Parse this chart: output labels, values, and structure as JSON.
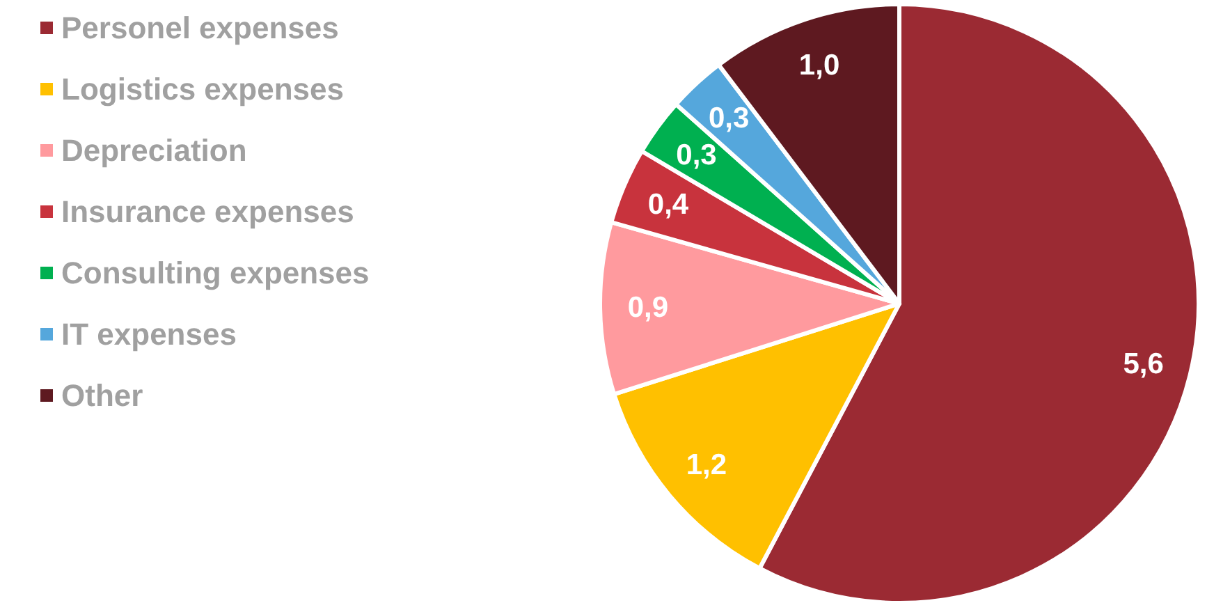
{
  "chart_data": {
    "type": "pie",
    "categories": [
      "Personel expenses",
      "Logistics expenses",
      "Depreciation",
      "Insurance expenses",
      "Consulting expenses",
      "IT expenses",
      "Other"
    ],
    "values": [
      5.6,
      1.2,
      0.9,
      0.4,
      0.3,
      0.3,
      1.0
    ],
    "colors": [
      "#9b2a33",
      "#ffc000",
      "#ff9a9e",
      "#c8333d",
      "#00b050",
      "#55a7dc",
      "#5e1920"
    ],
    "value_labels": [
      "5,6",
      "1,2",
      "0,9",
      "0,4",
      "0,3",
      "0,3",
      "1,0"
    ],
    "legend": "left"
  }
}
